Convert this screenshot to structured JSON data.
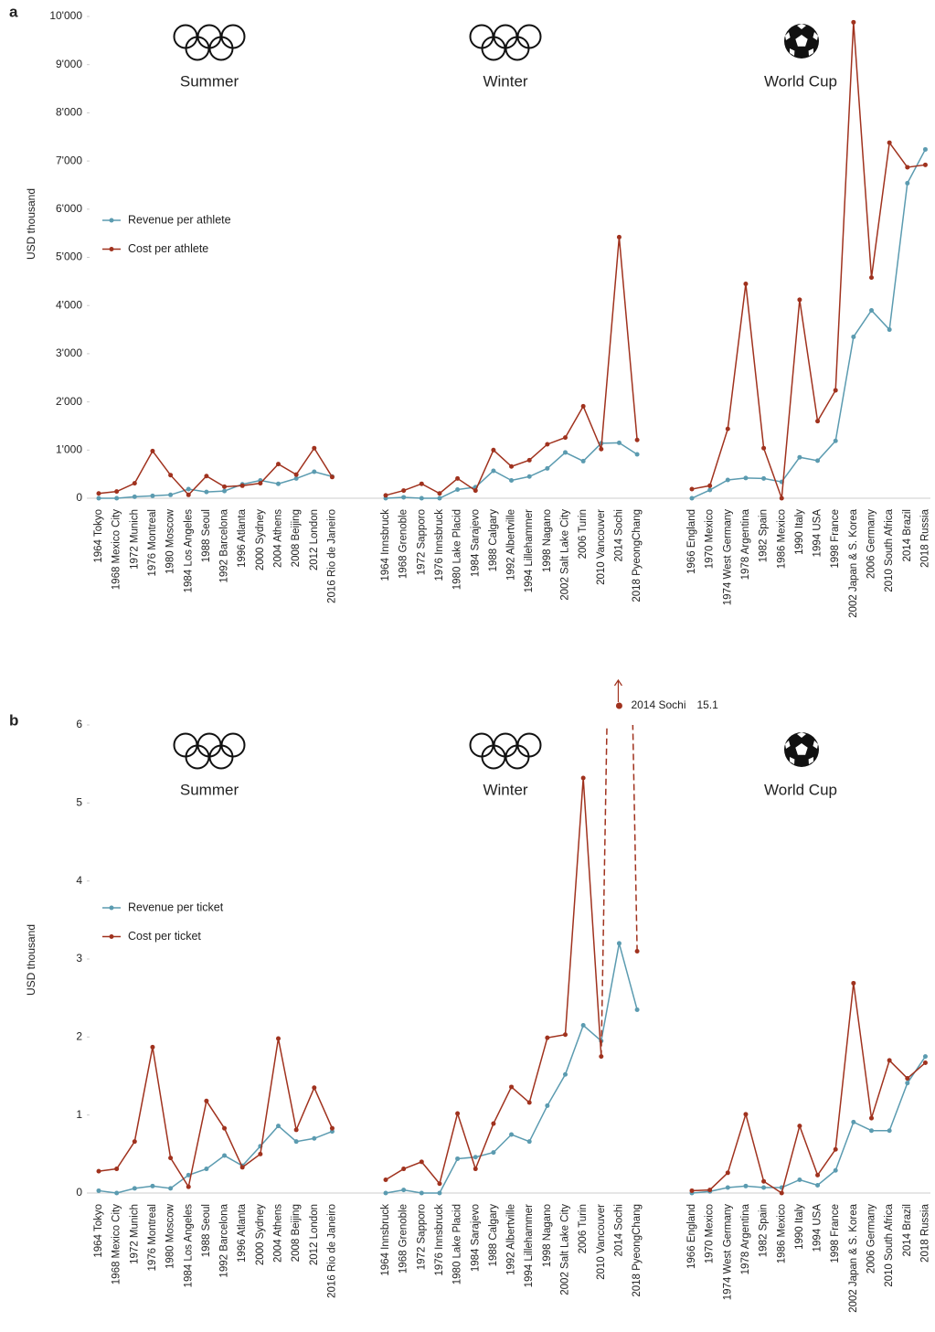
{
  "chart_data": [
    {
      "type": "line",
      "panel": "a",
      "ylabel": "USD thousand",
      "ylim": [
        0,
        10000
      ],
      "yticks": [
        0,
        {
          "value": 1000,
          "label": "1'000"
        },
        {
          "value": 2000,
          "label": "2'000"
        },
        {
          "value": 3000,
          "label": "3'000"
        },
        {
          "value": 4000,
          "label": "4'000"
        },
        {
          "value": 5000,
          "label": "5'000"
        },
        {
          "value": 6000,
          "label": "6'000"
        },
        {
          "value": 7000,
          "label": "7'000"
        },
        {
          "value": 8000,
          "label": "8'000"
        },
        {
          "value": 9000,
          "label": "9'000"
        },
        {
          "value": 10000,
          "label": "10'000"
        }
      ],
      "groups": [
        {
          "title": "Summer",
          "categories": [
            "1964 Tokyo",
            "1968 Mexico City",
            "1972 Munich",
            "1976 Montreal",
            "1980 Moscow",
            "1984 Los Angeles",
            "1988 Seoul",
            "1992 Barcelona",
            "1996 Atlanta",
            "2000 Sydney",
            "2004 Athens",
            "2008 Beijing",
            "2012 London",
            "2016 Rio de Janeiro"
          ]
        },
        {
          "title": "Winter",
          "categories": [
            "1964 Innsbruck",
            "1968 Grenoble",
            "1972 Sapporo",
            "1976 Innsbruck",
            "1980 Lake Placid",
            "1984 Sarajevo",
            "1988 Calgary",
            "1992 Albertville",
            "1994 Lillehammer",
            "1998 Nagano",
            "2002 Salt Lake City",
            "2006 Turin",
            "2010 Vancouver",
            "2014 Sochi",
            "2018 PyeongChang"
          ]
        },
        {
          "title": "World Cup",
          "categories": [
            "1966 England",
            "1970 Mexico",
            "1974 West Germany",
            "1978 Argentina",
            "1982 Spain",
            "1986 Mexico",
            "1990 Italy",
            "1994 USA",
            "1998 France",
            "2002 Japan & S. Korea",
            "2006 Germany",
            "2010 South Africa",
            "2014 Brazil",
            "2018 Russia"
          ]
        }
      ],
      "series": [
        {
          "name": "Revenue per athlete",
          "color": "#5b9bb0",
          "values": [
            [
              0,
              0,
              30,
              50,
              70,
              190,
              130,
              150,
              290,
              370,
              300,
              410,
              550,
              450
            ],
            [
              0,
              20,
              0,
              0,
              180,
              230,
              570,
              370,
              450,
              620,
              950,
              770,
              1140,
              1150,
              910
            ],
            [
              0,
              170,
              380,
              420,
              410,
              340,
              850,
              780,
              1190,
              3350,
              3900,
              3500,
              6540,
              7240
            ]
          ]
        },
        {
          "name": "Cost per athlete",
          "color": "#a0321e",
          "values": [
            [
              100,
              140,
              310,
              980,
              480,
              70,
              460,
              240,
              260,
              310,
              710,
              490,
              1040,
              440
            ],
            [
              60,
              160,
              300,
              100,
              410,
              160,
              1000,
              660,
              790,
              1120,
              1260,
              1910,
              1020,
              5420,
              1210
            ],
            [
              190,
              260,
              1440,
              4450,
              1040,
              0,
              4120,
              1600,
              2240,
              9880,
              4580,
              7380,
              6870,
              6920
            ]
          ]
        }
      ]
    },
    {
      "type": "line",
      "panel": "b",
      "ylabel": "USD thousand",
      "ylim": [
        0,
        6
      ],
      "yticks": [
        0,
        1,
        2,
        3,
        4,
        5,
        6
      ],
      "groups": [
        {
          "title": "Summer",
          "categories": [
            "1964 Tokyo",
            "1968 Mexico City",
            "1972 Munich",
            "1976 Montreal",
            "1980 Moscow",
            "1984 Los Angeles",
            "1988 Seoul",
            "1992 Barcelona",
            "1996 Atlanta",
            "2000 Sydney",
            "2004 Athens",
            "2008 Beijing",
            "2012 London",
            "2016 Rio de Janeiro"
          ]
        },
        {
          "title": "Winter",
          "categories": [
            "1964 Innsbruck",
            "1968 Grenoble",
            "1972 Sapporo",
            "1976 Innsbruck",
            "1980 Lake Placid",
            "1984 Sarajevo",
            "1988 Calgary",
            "1992 Albertville",
            "1994 Lillehammer",
            "1998 Nagano",
            "2002 Salt Lake City",
            "2006 Turin",
            "2010 Vancouver",
            "2014 Sochi",
            "2018 PyeongChang"
          ]
        },
        {
          "title": "World Cup",
          "categories": [
            "1966 England",
            "1970 Mexico",
            "1974 West Germany",
            "1978 Argentina",
            "1982 Spain",
            "1986 Mexico",
            "1990 Italy",
            "1994 USA",
            "1998 France",
            "2002 Japan & S. Korea",
            "2006 Germany",
            "2010 South Africa",
            "2014 Brazil",
            "2018 Russia"
          ]
        }
      ],
      "series": [
        {
          "name": "Revenue per ticket",
          "color": "#5b9bb0",
          "values": [
            [
              0.03,
              0,
              0.06,
              0.09,
              0.06,
              0.23,
              0.31,
              0.48,
              0.35,
              0.6,
              0.86,
              0.66,
              0.7,
              0.79
            ],
            [
              0,
              0.04,
              0,
              0,
              0.44,
              0.46,
              0.52,
              0.75,
              0.66,
              1.12,
              1.52,
              2.15,
              1.95,
              3.2,
              2.35
            ],
            [
              0,
              0.02,
              0.07,
              0.09,
              0.07,
              0.07,
              0.17,
              0.1,
              0.29,
              0.91,
              0.8,
              0.8,
              1.41,
              1.75
            ]
          ]
        },
        {
          "name": "Cost per ticket",
          "color": "#a0321e",
          "values": [
            [
              0.28,
              0.31,
              0.66,
              1.87,
              0.45,
              0.08,
              1.18,
              0.83,
              0.33,
              0.5,
              1.98,
              0.81,
              1.35,
              0.83
            ],
            [
              0.17,
              0.31,
              0.4,
              0.12,
              1.02,
              0.31,
              0.89,
              1.36,
              1.16,
              1.99,
              2.03,
              5.32,
              1.75,
              15.1,
              3.1
            ],
            [
              0.03,
              0.04,
              0.26,
              1.01,
              0.15,
              0,
              0.86,
              0.23,
              0.56,
              2.69,
              0.96,
              1.7,
              1.47,
              1.67
            ]
          ]
        }
      ]
    }
  ]
}
